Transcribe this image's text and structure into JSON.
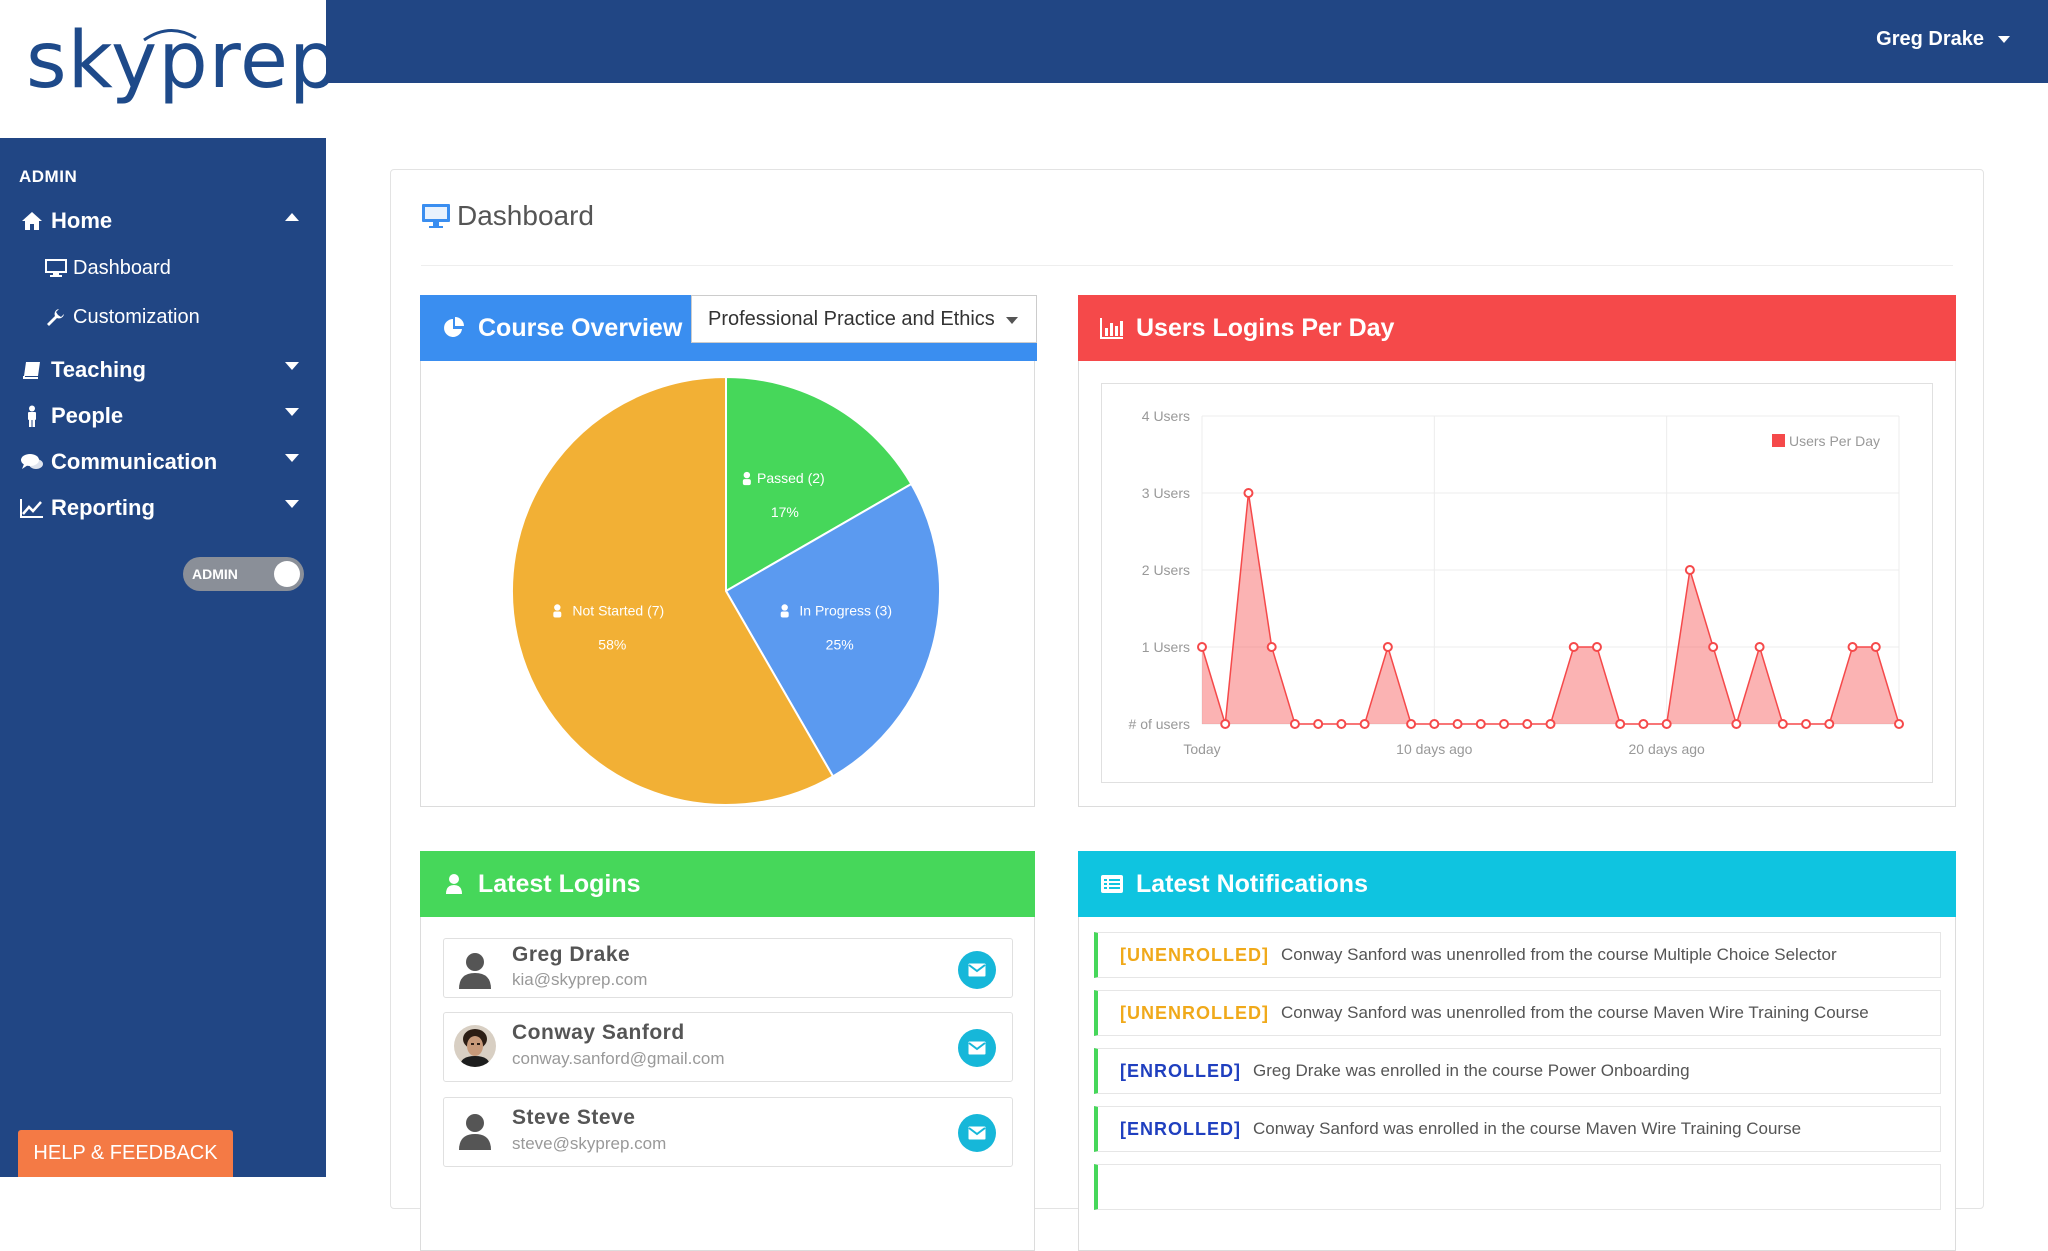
{
  "app": {
    "logo_text": "skyprep"
  },
  "sidebar": {
    "section_label": "ADMIN",
    "items": [
      {
        "label": "Home",
        "icon": "home-icon",
        "expanded": true
      },
      {
        "label": "Teaching",
        "icon": "book-icon",
        "expanded": false
      },
      {
        "label": "People",
        "icon": "person-icon",
        "expanded": false
      },
      {
        "label": "Communication",
        "icon": "chat-icon",
        "expanded": false
      },
      {
        "label": "Reporting",
        "icon": "line-chart-icon",
        "expanded": false
      }
    ],
    "home_subitems": [
      {
        "label": "Dashboard",
        "icon": "monitor-icon"
      },
      {
        "label": "Customization",
        "icon": "wrench-icon"
      }
    ],
    "admin_toggle_label": "ADMIN",
    "help_button": "HELP & FEEDBACK"
  },
  "topbar": {
    "user_name": "Greg Drake"
  },
  "page": {
    "title": "Dashboard"
  },
  "course_overview": {
    "title": "Course Overview",
    "selected_course": "Professional Practice and Ethics",
    "accent": "#3a8ef0"
  },
  "logins_chart": {
    "title": "Users Logins Per Day",
    "accent": "#f5494a"
  },
  "latest_logins": {
    "title": "Latest Logins",
    "accent": "#46d75a",
    "users": [
      {
        "name": "Greg Drake",
        "email": "kia@skyprep.com",
        "avatar": "default-avatar"
      },
      {
        "name": "Conway Sanford",
        "email": "conway.sanford@gmail.com",
        "avatar": "photo-avatar"
      },
      {
        "name": "Steve Steve",
        "email": "steve@skyprep.com",
        "avatar": "default-avatar"
      }
    ]
  },
  "notifications": {
    "title": "Latest Notifications",
    "accent": "#0fc4e0",
    "items": [
      {
        "tag": "[UNENROLLED]",
        "type": "unenrolled",
        "text": "Conway Sanford was unenrolled from the course Multiple Choice Selector"
      },
      {
        "tag": "[UNENROLLED]",
        "type": "unenrolled",
        "text": "Conway Sanford was unenrolled from the course Maven Wire Training Course"
      },
      {
        "tag": "[ENROLLED]",
        "type": "enrolled",
        "text": "Greg Drake was enrolled in the course Power Onboarding"
      },
      {
        "tag": "[ENROLLED]",
        "type": "enrolled",
        "text": "Conway Sanford was enrolled in the course Maven Wire Training Course"
      }
    ]
  },
  "chart_data": [
    {
      "type": "pie",
      "slices": [
        {
          "label": "Passed (2)",
          "percent_label": "17%",
          "value": 2,
          "color": "#46d75a"
        },
        {
          "label": "In Progress (3)",
          "percent_label": "25%",
          "value": 3,
          "color": "#5b9af0"
        },
        {
          "label": "Not Started (7)",
          "percent_label": "58%",
          "value": 7,
          "color": "#f2b035"
        }
      ]
    },
    {
      "type": "area",
      "ylabel": "# of users",
      "yticks": [
        "# of users",
        "1 Users",
        "2 Users",
        "3 Users",
        "4 Users"
      ],
      "ylim": [
        0,
        4
      ],
      "xtick_labels": [
        {
          "index": 0,
          "label": "Today"
        },
        {
          "index": 10,
          "label": "10 days ago"
        },
        {
          "index": 20,
          "label": "20 days ago"
        }
      ],
      "legend": "Users Per Day",
      "legend_position": "top-right",
      "grid": true,
      "color": "#f5494a",
      "values": [
        1,
        0,
        3,
        1,
        0,
        0,
        0,
        0,
        1,
        0,
        0,
        0,
        0,
        0,
        0,
        0,
        1,
        1,
        0,
        0,
        0,
        2,
        1,
        0,
        1,
        0,
        0,
        0,
        1,
        1,
        0
      ]
    }
  ]
}
